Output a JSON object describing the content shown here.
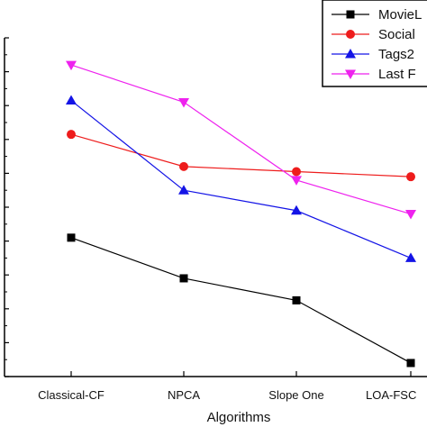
{
  "chart_data": {
    "type": "line",
    "categories": [
      "Classical-CF",
      "NPCA",
      "Slope One",
      "LOA-FSC"
    ],
    "xlabel": "Algorithms",
    "ylabel": "",
    "ylim": [
      0,
      10
    ],
    "grid": false,
    "legend_position": "top-right",
    "series": [
      {
        "name": "MovieL",
        "color": "#000000",
        "marker": "square",
        "values": [
          4.1,
          2.9,
          2.25,
          0.4
        ]
      },
      {
        "name": "Social",
        "color": "#ee1c1c",
        "marker": "circle",
        "values": [
          7.15,
          6.2,
          6.05,
          5.9
        ]
      },
      {
        "name": "Tags2",
        "color": "#1414e6",
        "marker": "triangle-up",
        "values": [
          8.15,
          5.5,
          4.9,
          3.5
        ]
      },
      {
        "name": "Last F",
        "color": "#ee22ee",
        "marker": "triangle-down",
        "values": [
          9.2,
          8.1,
          5.8,
          4.8
        ]
      }
    ]
  }
}
